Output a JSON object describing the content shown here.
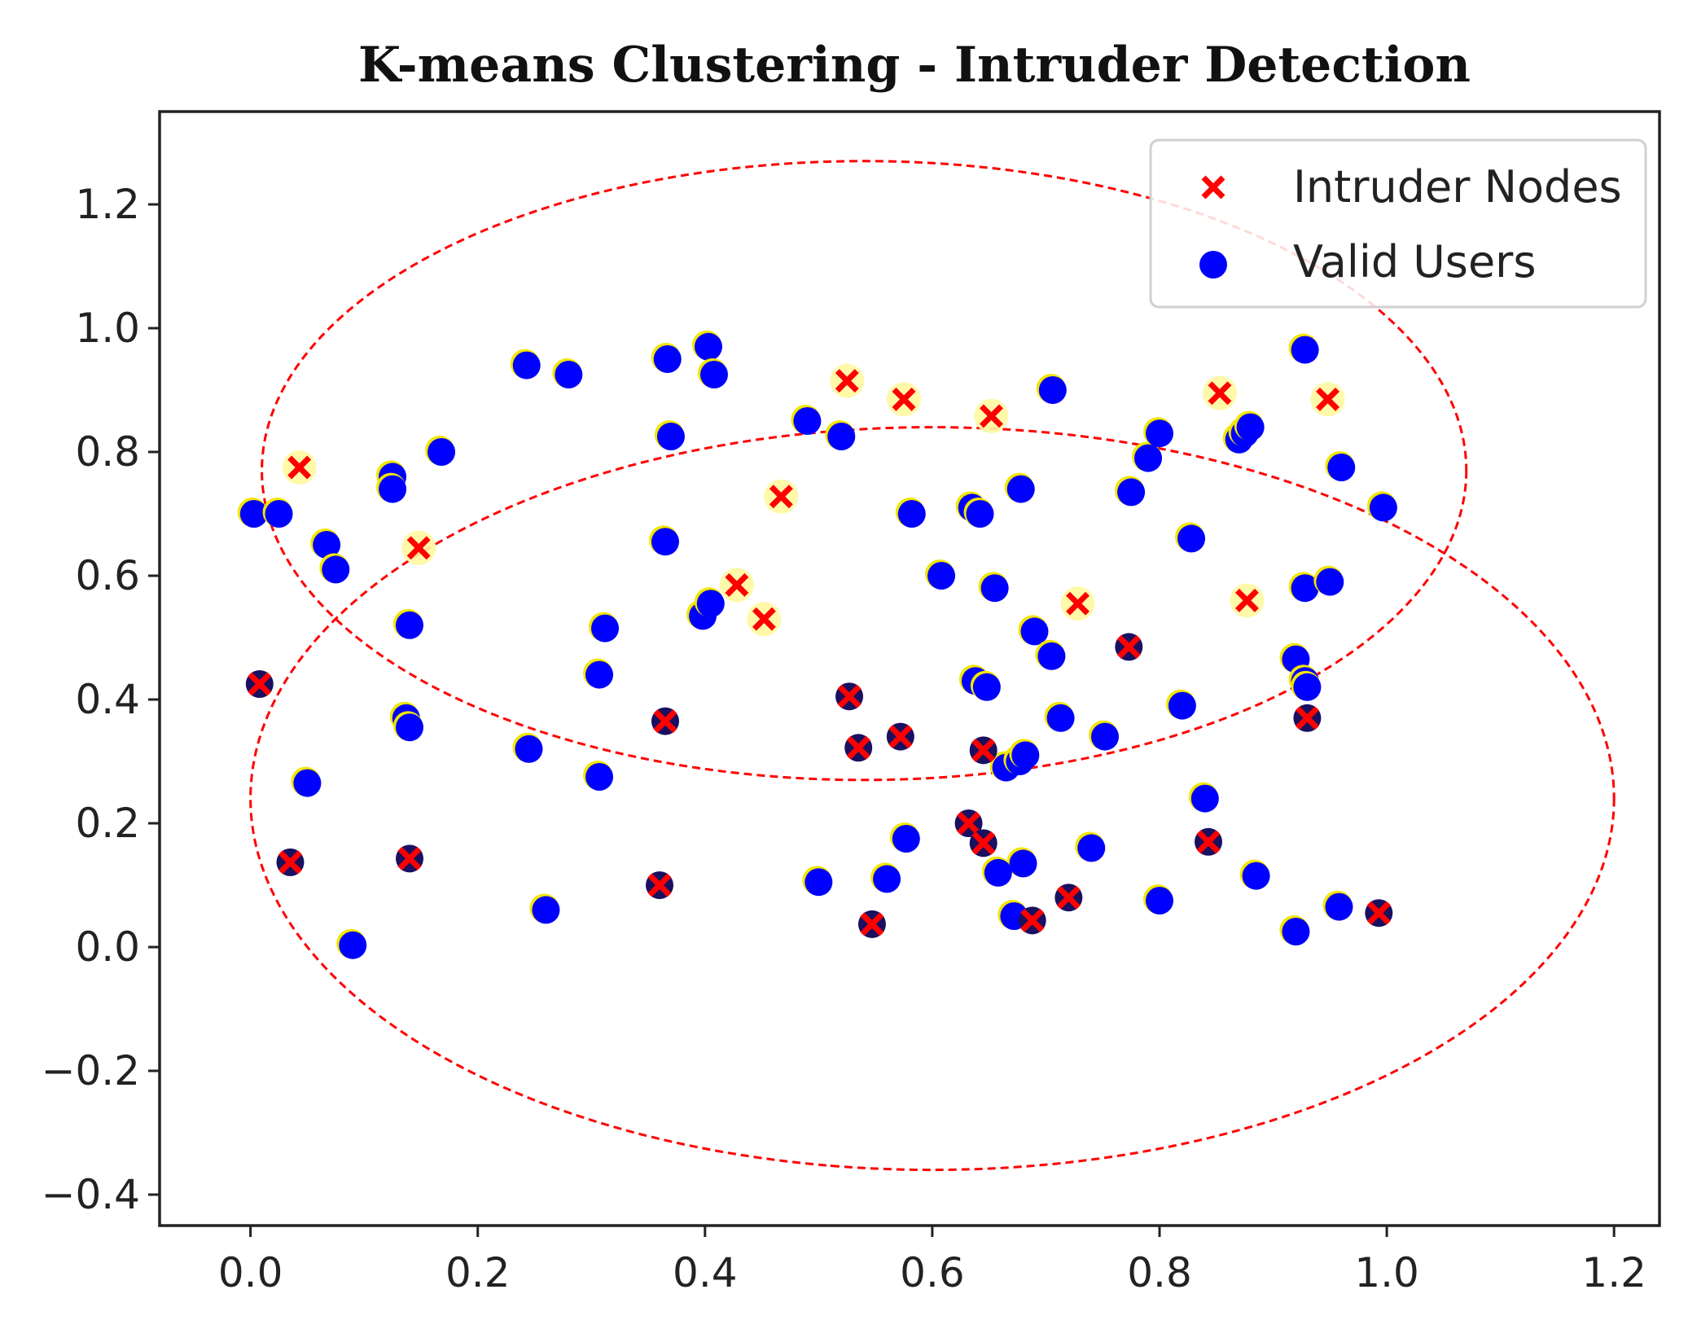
{
  "chart_data": {
    "type": "scatter",
    "title": "K-means Clustering - Intruder Detection",
    "xlabel": "",
    "ylabel": "",
    "xlim": [
      -0.08,
      1.24
    ],
    "ylim": [
      -0.45,
      1.35
    ],
    "xticks": [
      0.0,
      0.2,
      0.4,
      0.6,
      0.8,
      1.0,
      1.2
    ],
    "xtick_labels": [
      "0.0",
      "0.2",
      "0.4",
      "0.6",
      "0.8",
      "1.0",
      "1.2"
    ],
    "yticks": [
      -0.4,
      -0.2,
      0.0,
      0.2,
      0.4,
      0.6,
      0.8,
      1.0,
      1.2
    ],
    "ytick_labels": [
      "−0.4",
      "−0.2",
      "0.0",
      "0.2",
      "0.4",
      "0.6",
      "0.8",
      "1.0",
      "1.2"
    ],
    "grid": false,
    "legend_position": "top-right",
    "series": [
      {
        "name": "Intruder Nodes",
        "marker": "x",
        "color": "#ff0000",
        "points": [
          [
            0.043,
            0.775
          ],
          [
            0.148,
            0.645
          ],
          [
            0.008,
            0.425
          ],
          [
            0.035,
            0.137
          ],
          [
            0.14,
            0.143
          ],
          [
            0.36,
            0.1
          ],
          [
            0.365,
            0.365
          ],
          [
            0.428,
            0.585
          ],
          [
            0.452,
            0.53
          ],
          [
            0.467,
            0.728
          ],
          [
            0.525,
            0.915
          ],
          [
            0.575,
            0.885
          ],
          [
            0.652,
            0.858
          ],
          [
            0.527,
            0.405
          ],
          [
            0.535,
            0.322
          ],
          [
            0.572,
            0.34
          ],
          [
            0.645,
            0.318
          ],
          [
            0.547,
            0.037
          ],
          [
            0.632,
            0.2
          ],
          [
            0.645,
            0.168
          ],
          [
            0.688,
            0.043
          ],
          [
            0.72,
            0.08
          ],
          [
            0.728,
            0.555
          ],
          [
            0.773,
            0.485
          ],
          [
            0.843,
            0.17
          ],
          [
            0.853,
            0.895
          ],
          [
            0.877,
            0.56
          ],
          [
            0.93,
            0.37
          ],
          [
            0.948,
            0.885
          ],
          [
            0.993,
            0.055
          ]
        ]
      },
      {
        "name": "Valid Users",
        "marker": "o",
        "color": "#0000ff",
        "points": [
          [
            0.003,
            0.7
          ],
          [
            0.025,
            0.7
          ],
          [
            0.067,
            0.65
          ],
          [
            0.075,
            0.61
          ],
          [
            0.125,
            0.76
          ],
          [
            0.125,
            0.74
          ],
          [
            0.168,
            0.8
          ],
          [
            0.14,
            0.52
          ],
          [
            0.137,
            0.37
          ],
          [
            0.14,
            0.355
          ],
          [
            0.05,
            0.265
          ],
          [
            0.09,
            0.003
          ],
          [
            0.243,
            0.94
          ],
          [
            0.28,
            0.925
          ],
          [
            0.245,
            0.32
          ],
          [
            0.26,
            0.06
          ],
          [
            0.307,
            0.44
          ],
          [
            0.312,
            0.515
          ],
          [
            0.307,
            0.275
          ],
          [
            0.367,
            0.95
          ],
          [
            0.37,
            0.825
          ],
          [
            0.365,
            0.655
          ],
          [
            0.398,
            0.535
          ],
          [
            0.405,
            0.555
          ],
          [
            0.403,
            0.97
          ],
          [
            0.408,
            0.925
          ],
          [
            0.49,
            0.85
          ],
          [
            0.52,
            0.825
          ],
          [
            0.5,
            0.105
          ],
          [
            0.56,
            0.11
          ],
          [
            0.577,
            0.175
          ],
          [
            0.582,
            0.7
          ],
          [
            0.608,
            0.6
          ],
          [
            0.635,
            0.71
          ],
          [
            0.642,
            0.7
          ],
          [
            0.655,
            0.58
          ],
          [
            0.638,
            0.43
          ],
          [
            0.648,
            0.42
          ],
          [
            0.665,
            0.29
          ],
          [
            0.677,
            0.3
          ],
          [
            0.682,
            0.31
          ],
          [
            0.69,
            0.51
          ],
          [
            0.678,
            0.74
          ],
          [
            0.705,
            0.47
          ],
          [
            0.706,
            0.9
          ],
          [
            0.713,
            0.37
          ],
          [
            0.752,
            0.34
          ],
          [
            0.775,
            0.735
          ],
          [
            0.79,
            0.79
          ],
          [
            0.8,
            0.83
          ],
          [
            0.828,
            0.66
          ],
          [
            0.82,
            0.39
          ],
          [
            0.84,
            0.24
          ],
          [
            0.74,
            0.16
          ],
          [
            0.8,
            0.075
          ],
          [
            0.68,
            0.135
          ],
          [
            0.658,
            0.12
          ],
          [
            0.672,
            0.05
          ],
          [
            0.87,
            0.82
          ],
          [
            0.875,
            0.83
          ],
          [
            0.88,
            0.84
          ],
          [
            0.885,
            0.115
          ],
          [
            0.92,
            0.025
          ],
          [
            0.92,
            0.465
          ],
          [
            0.928,
            0.43
          ],
          [
            0.93,
            0.42
          ],
          [
            0.928,
            0.58
          ],
          [
            0.95,
            0.59
          ],
          [
            0.96,
            0.775
          ],
          [
            0.928,
            0.965
          ],
          [
            0.958,
            0.065
          ],
          [
            0.997,
            0.71
          ]
        ]
      }
    ],
    "annotations": [
      {
        "type": "ellipse",
        "style": "dashed",
        "color": "#ff0000",
        "center": [
          0.54,
          0.77
        ],
        "width": 1.06,
        "height": 1.0
      },
      {
        "type": "ellipse",
        "style": "dashed",
        "color": "#ff0000",
        "center": [
          0.6,
          0.24
        ],
        "width": 1.2,
        "height": 1.2
      }
    ]
  }
}
